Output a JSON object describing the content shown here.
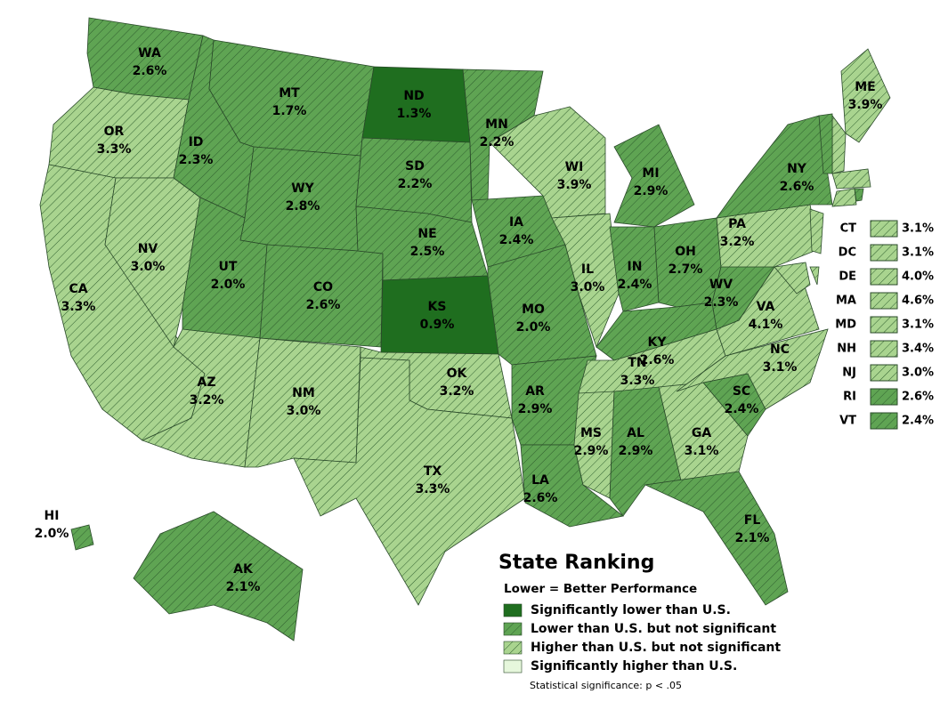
{
  "title": "State Ranking",
  "subtitle": "Lower = Better Performance",
  "legend": [
    {
      "label": "Significantly lower than U.S.",
      "color": "#1f6e1f",
      "hatched": false
    },
    {
      "label": "Lower than U.S. but not significant",
      "color": "#5fa453",
      "hatched": true
    },
    {
      "label": "Higher than U.S. but not significant",
      "color": "#a9d48f",
      "hatched": true
    },
    {
      "label": "Significantly higher than U.S.",
      "color": "#e6f7dc",
      "hatched": false
    }
  ],
  "note": "Statistical significance: p < .05",
  "states": [
    {
      "abbr": "WA",
      "label": "2.6%",
      "color": "#5fa453"
    },
    {
      "abbr": "OR",
      "label": "3.3%",
      "color": "#a9d48f"
    },
    {
      "abbr": "CA",
      "label": "3.3%",
      "color": "#a9d48f"
    },
    {
      "abbr": "NV",
      "label": "3.0%",
      "color": "#a9d48f"
    },
    {
      "abbr": "ID",
      "label": "2.3%",
      "color": "#5fa453"
    },
    {
      "abbr": "MT",
      "label": "1.7%",
      "color": "#5fa453"
    },
    {
      "abbr": "WY",
      "label": "2.8%",
      "color": "#5fa453"
    },
    {
      "abbr": "UT",
      "label": "2.0%",
      "color": "#5fa453"
    },
    {
      "abbr": "CO",
      "label": "2.6%",
      "color": "#5fa453"
    },
    {
      "abbr": "AZ",
      "label": "3.2%",
      "color": "#a9d48f"
    },
    {
      "abbr": "NM",
      "label": "3.0%",
      "color": "#a9d48f"
    },
    {
      "abbr": "ND",
      "label": "1.3%",
      "color": "#1f6e1f"
    },
    {
      "abbr": "SD",
      "label": "2.2%",
      "color": "#5fa453"
    },
    {
      "abbr": "NE",
      "label": "2.5%",
      "color": "#5fa453"
    },
    {
      "abbr": "KS",
      "label": "0.9%",
      "color": "#1f6e1f"
    },
    {
      "abbr": "OK",
      "label": "3.2%",
      "color": "#a9d48f"
    },
    {
      "abbr": "TX",
      "label": "3.3%",
      "color": "#a9d48f"
    },
    {
      "abbr": "MN",
      "label": "2.2%",
      "color": "#5fa453"
    },
    {
      "abbr": "IA",
      "label": "2.4%",
      "color": "#5fa453"
    },
    {
      "abbr": "MO",
      "label": "2.0%",
      "color": "#5fa453"
    },
    {
      "abbr": "AR",
      "label": "2.9%",
      "color": "#5fa453"
    },
    {
      "abbr": "LA",
      "label": "2.6%",
      "color": "#5fa453"
    },
    {
      "abbr": "WI",
      "label": "3.9%",
      "color": "#a9d48f"
    },
    {
      "abbr": "IL",
      "label": "3.0%",
      "color": "#a9d48f"
    },
    {
      "abbr": "MI",
      "label": "2.9%",
      "color": "#5fa453"
    },
    {
      "abbr": "IN",
      "label": "2.4%",
      "color": "#5fa453"
    },
    {
      "abbr": "OH",
      "label": "2.7%",
      "color": "#5fa453"
    },
    {
      "abbr": "KY",
      "label": "2.6%",
      "color": "#5fa453"
    },
    {
      "abbr": "TN",
      "label": "3.3%",
      "color": "#a9d48f"
    },
    {
      "abbr": "MS",
      "label": "2.9%",
      "color": "#a9d48f"
    },
    {
      "abbr": "AL",
      "label": "2.9%",
      "color": "#5fa453"
    },
    {
      "abbr": "GA",
      "label": "3.1%",
      "color": "#a9d48f"
    },
    {
      "abbr": "FL",
      "label": "2.1%",
      "color": "#5fa453"
    },
    {
      "abbr": "SC",
      "label": "2.4%",
      "color": "#5fa453"
    },
    {
      "abbr": "NC",
      "label": "3.1%",
      "color": "#a9d48f"
    },
    {
      "abbr": "VA",
      "label": "4.1%",
      "color": "#a9d48f"
    },
    {
      "abbr": "WV",
      "label": "2.3%",
      "color": "#5fa453"
    },
    {
      "abbr": "PA",
      "label": "3.2%",
      "color": "#a9d48f"
    },
    {
      "abbr": "NY",
      "label": "2.6%",
      "color": "#5fa453"
    },
    {
      "abbr": "ME",
      "label": "3.9%",
      "color": "#a9d48f"
    },
    {
      "abbr": "AK",
      "label": "2.1%",
      "color": "#5fa453"
    },
    {
      "abbr": "HI",
      "label": "2.0%",
      "color": "#5fa453"
    }
  ],
  "small_states": [
    {
      "abbr": "CT",
      "label": "3.1%",
      "color": "#a9d48f"
    },
    {
      "abbr": "DC",
      "label": "3.1%",
      "color": "#a9d48f"
    },
    {
      "abbr": "DE",
      "label": "4.0%",
      "color": "#a9d48f"
    },
    {
      "abbr": "MA",
      "label": "4.6%",
      "color": "#a9d48f"
    },
    {
      "abbr": "MD",
      "label": "3.1%",
      "color": "#a9d48f"
    },
    {
      "abbr": "NH",
      "label": "3.4%",
      "color": "#a9d48f"
    },
    {
      "abbr": "NJ",
      "label": "3.0%",
      "color": "#a9d48f"
    },
    {
      "abbr": "RI",
      "label": "2.6%",
      "color": "#5fa453"
    },
    {
      "abbr": "VT",
      "label": "2.4%",
      "color": "#5fa453"
    }
  ]
}
